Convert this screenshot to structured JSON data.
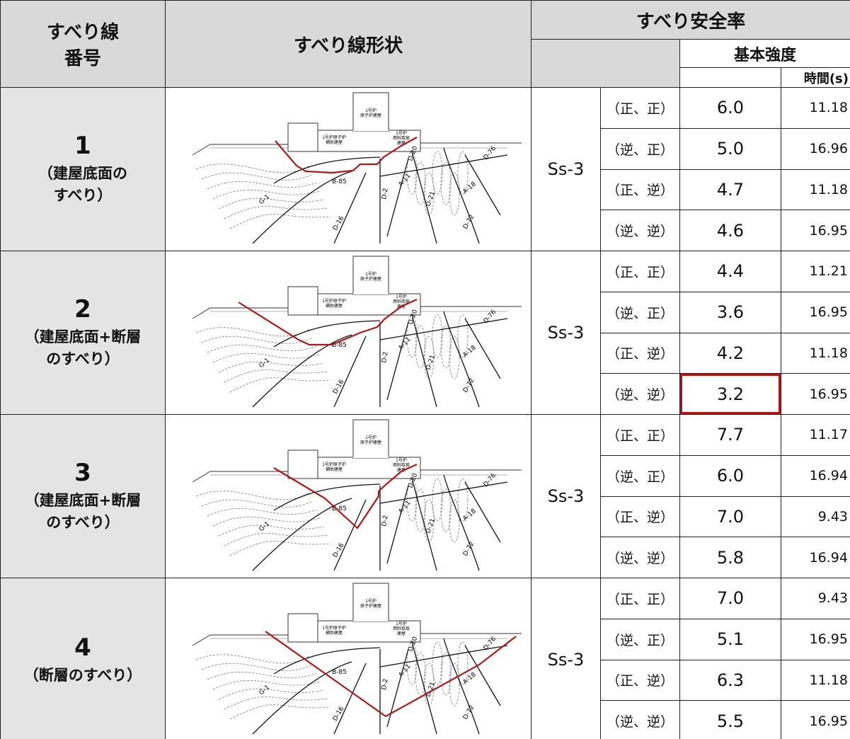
{
  "header": {
    "col_number": [
      "すべり線",
      "番号"
    ],
    "col_shape": "すべり線形状",
    "col_factor": "すべり安全率",
    "col_basic": "基本強度",
    "col_time": "時間(s)"
  },
  "diagram_labels": {
    "reactor": [
      "1号炉",
      "原子炉建屋"
    ],
    "aux": [
      "1号炉原子炉",
      "補助建屋"
    ],
    "fuel": [
      "1号炉",
      "燃料取扱",
      "建屋"
    ],
    "faults": [
      "B-85",
      "G-1",
      "D-16",
      "D-2",
      "A-11",
      "D-20",
      "D-21",
      "A-18",
      "D-72",
      "D-76"
    ]
  },
  "rows": [
    {
      "number": "1",
      "description": [
        "（建屋底面の",
        "すべり）"
      ],
      "wave": "Ss-3",
      "cases": [
        {
          "direction": "（正、正）",
          "factor": "6.0",
          "time": "11.18"
        },
        {
          "direction": "（逆、正）",
          "factor": "5.0",
          "time": "16.96"
        },
        {
          "direction": "（正、逆）",
          "factor": "4.7",
          "time": "11.18"
        },
        {
          "direction": "（逆、逆）",
          "factor": "4.6",
          "time": "16.95"
        }
      ]
    },
    {
      "number": "2",
      "description": [
        "（建屋底面+断層",
        "のすべり）"
      ],
      "wave": "Ss-3",
      "cases": [
        {
          "direction": "（正、正）",
          "factor": "4.4",
          "time": "11.21"
        },
        {
          "direction": "（逆、正）",
          "factor": "3.6",
          "time": "16.95"
        },
        {
          "direction": "（正、逆）",
          "factor": "4.2",
          "time": "11.18"
        },
        {
          "direction": "（逆、逆）",
          "factor": "3.2",
          "time": "16.95"
        }
      ]
    },
    {
      "number": "3",
      "description": [
        "（建屋底面+断層",
        "のすべり）"
      ],
      "wave": "Ss-3",
      "cases": [
        {
          "direction": "（正、正）",
          "factor": "7.7",
          "time": "11.17"
        },
        {
          "direction": "（逆、正）",
          "factor": "6.0",
          "time": "16.94"
        },
        {
          "direction": "（正、逆）",
          "factor": "7.0",
          "time": "9.43"
        },
        {
          "direction": "（逆、逆）",
          "factor": "5.8",
          "time": "16.94"
        }
      ]
    },
    {
      "number": "4",
      "description": [
        "（断層のすべり）"
      ],
      "wave": "Ss-3",
      "cases": [
        {
          "direction": "（正、正）",
          "factor": "7.0",
          "time": "9.43"
        },
        {
          "direction": "（逆、正）",
          "factor": "5.1",
          "time": "16.95"
        },
        {
          "direction": "（正、逆）",
          "factor": "6.3",
          "time": "11.18"
        },
        {
          "direction": "（逆、逆）",
          "factor": "5.5",
          "time": "16.95"
        }
      ]
    }
  ]
}
